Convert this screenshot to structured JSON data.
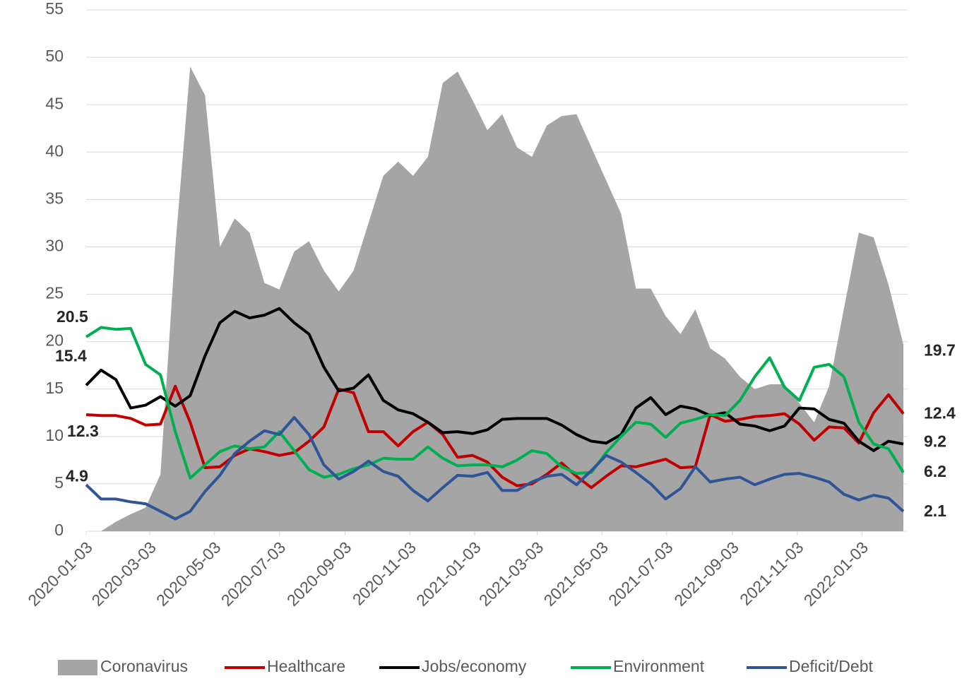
{
  "chart_data": {
    "type": "line",
    "x": [
      "2020-01-03",
      "2020-01-17",
      "2020-01-31",
      "2020-02-14",
      "2020-02-28",
      "2020-03-13",
      "2020-03-27",
      "2020-04-10",
      "2020-04-24",
      "2020-05-08",
      "2020-05-22",
      "2020-06-05",
      "2020-06-19",
      "2020-07-03",
      "2020-07-17",
      "2020-07-31",
      "2020-08-14",
      "2020-08-28",
      "2020-09-11",
      "2020-09-25",
      "2020-10-09",
      "2020-10-23",
      "2020-11-06",
      "2020-11-20",
      "2020-12-04",
      "2020-12-18",
      "2021-01-01",
      "2021-01-15",
      "2021-01-29",
      "2021-02-12",
      "2021-02-26",
      "2021-03-12",
      "2021-03-26",
      "2021-04-09",
      "2021-04-23",
      "2021-05-07",
      "2021-05-21",
      "2021-06-04",
      "2021-06-18",
      "2021-07-02",
      "2021-07-16",
      "2021-07-30",
      "2021-08-13",
      "2021-08-27",
      "2021-09-10",
      "2021-09-24",
      "2021-10-08",
      "2021-10-22",
      "2021-11-05",
      "2021-11-19",
      "2021-12-03",
      "2021-12-17",
      "2021-12-31",
      "2022-01-14",
      "2022-01-28",
      "2022-02-11"
    ],
    "series": [
      {
        "name": "Coronavirus",
        "kind": "area",
        "color": "#a5a5a5",
        "labeled_points": [
          55
        ],
        "values": [
          0,
          0,
          1,
          1.8,
          2.5,
          6,
          30,
          49,
          46,
          30,
          33,
          31.5,
          26.2,
          25.5,
          29.5,
          30.6,
          27.5,
          25.3,
          27.5,
          32.5,
          37.5,
          39,
          37.5,
          39.5,
          47.3,
          48.5,
          45.5,
          42.3,
          44,
          40.5,
          39.5,
          42.8,
          43.8,
          44,
          40.5,
          37,
          33.5,
          25.6,
          25.6,
          22.7,
          20.8,
          23.4,
          19.3,
          18.2,
          16.3,
          15,
          15.5,
          15.5,
          13.5,
          11.5,
          15.3,
          23.5,
          31.5,
          31,
          26,
          19.7
        ]
      },
      {
        "name": "Healthcare",
        "kind": "line",
        "color": "#c00000",
        "labeled_points": [
          0,
          55
        ],
        "values": [
          12.3,
          12.2,
          12.2,
          11.9,
          11.2,
          11.3,
          15.3,
          11.5,
          6.7,
          6.8,
          8,
          8.7,
          8.4,
          8,
          8.3,
          9.5,
          11,
          15,
          14.6,
          10.5,
          10.5,
          9,
          10.5,
          11.5,
          10.2,
          7.8,
          8,
          7.3,
          5.7,
          4.8,
          5,
          6,
          7.2,
          5.8,
          4.6,
          5.8,
          6.9,
          6.8,
          7.2,
          7.6,
          6.7,
          6.8,
          12.3,
          11.6,
          11.8,
          12.1,
          12.2,
          12.4,
          11.3,
          9.6,
          11,
          10.9,
          9.3,
          12.5,
          14.4,
          12.4
        ]
      },
      {
        "name": "Jobs/economy",
        "kind": "line",
        "color": "#000000",
        "labeled_points": [
          0,
          55
        ],
        "values": [
          15.4,
          17,
          16,
          13,
          13.3,
          14.2,
          13.2,
          14.3,
          18.5,
          22,
          23.2,
          22.5,
          22.8,
          23.5,
          22,
          20.8,
          17.3,
          14.8,
          15.1,
          16.5,
          13.8,
          12.8,
          12.4,
          11.5,
          10.4,
          10.5,
          10.3,
          10.7,
          11.8,
          11.9,
          11.9,
          11.9,
          11.2,
          10.2,
          9.5,
          9.3,
          10.2,
          13,
          14.1,
          12.3,
          13.2,
          12.9,
          12.2,
          12.5,
          11.3,
          11.1,
          10.6,
          11.1,
          13,
          12.9,
          11.8,
          11.4,
          9.5,
          8.5,
          9.5,
          9.2
        ]
      },
      {
        "name": "Environment",
        "kind": "line",
        "color": "#00b050",
        "labeled_points": [
          0,
          55
        ],
        "values": [
          20.5,
          21.5,
          21.3,
          21.4,
          17.6,
          16.5,
          10.5,
          5.6,
          7,
          8.4,
          9,
          8.7,
          8.9,
          10.5,
          8.5,
          6.5,
          5.7,
          6,
          6.6,
          7,
          7.7,
          7.6,
          7.6,
          8.9,
          7.7,
          6.9,
          7,
          7,
          6.8,
          7.5,
          8.5,
          8.2,
          6.8,
          6.1,
          6.2,
          8.3,
          10,
          11.5,
          11.3,
          9.9,
          11.4,
          11.8,
          12.3,
          12.2,
          13.8,
          16.3,
          18.3,
          15.2,
          13.8,
          17.3,
          17.6,
          16.3,
          11.5,
          9.2,
          8.7,
          6.2
        ]
      },
      {
        "name": "Deficit/Debt",
        "kind": "line",
        "color": "#2f5597",
        "labeled_points": [
          0,
          55
        ],
        "values": [
          4.9,
          3.4,
          3.4,
          3.1,
          2.9,
          2.1,
          1.3,
          2.1,
          4.2,
          5.9,
          8.2,
          9.5,
          10.6,
          10.2,
          12,
          10.2,
          7,
          5.5,
          6.3,
          7.4,
          6.3,
          5.8,
          4.3,
          3.2,
          4.6,
          5.9,
          5.8,
          6.2,
          4.3,
          4.3,
          5.2,
          5.8,
          6,
          4.9,
          6.4,
          8,
          7.3,
          6.2,
          5,
          3.4,
          4.5,
          6.8,
          5.2,
          5.5,
          5.7,
          4.9,
          5.5,
          6,
          6.1,
          5.7,
          5.2,
          3.9,
          3.3,
          3.8,
          3.5,
          2.1
        ]
      }
    ],
    "xlim": [
      "2020-01-03",
      "2022-02-15"
    ],
    "xticks": [
      "2020-01-03",
      "2020-03-03",
      "2020-05-03",
      "2020-07-03",
      "2020-09-03",
      "2020-11-03",
      "2021-01-03",
      "2021-03-03",
      "2021-05-03",
      "2021-07-03",
      "2021-09-03",
      "2021-11-03",
      "2022-01-03"
    ],
    "ylim": [
      0,
      55
    ],
    "yticks": [
      0,
      5,
      10,
      15,
      20,
      25,
      30,
      35,
      40,
      45,
      50,
      55
    ],
    "grid": true,
    "legend": "bottom"
  }
}
